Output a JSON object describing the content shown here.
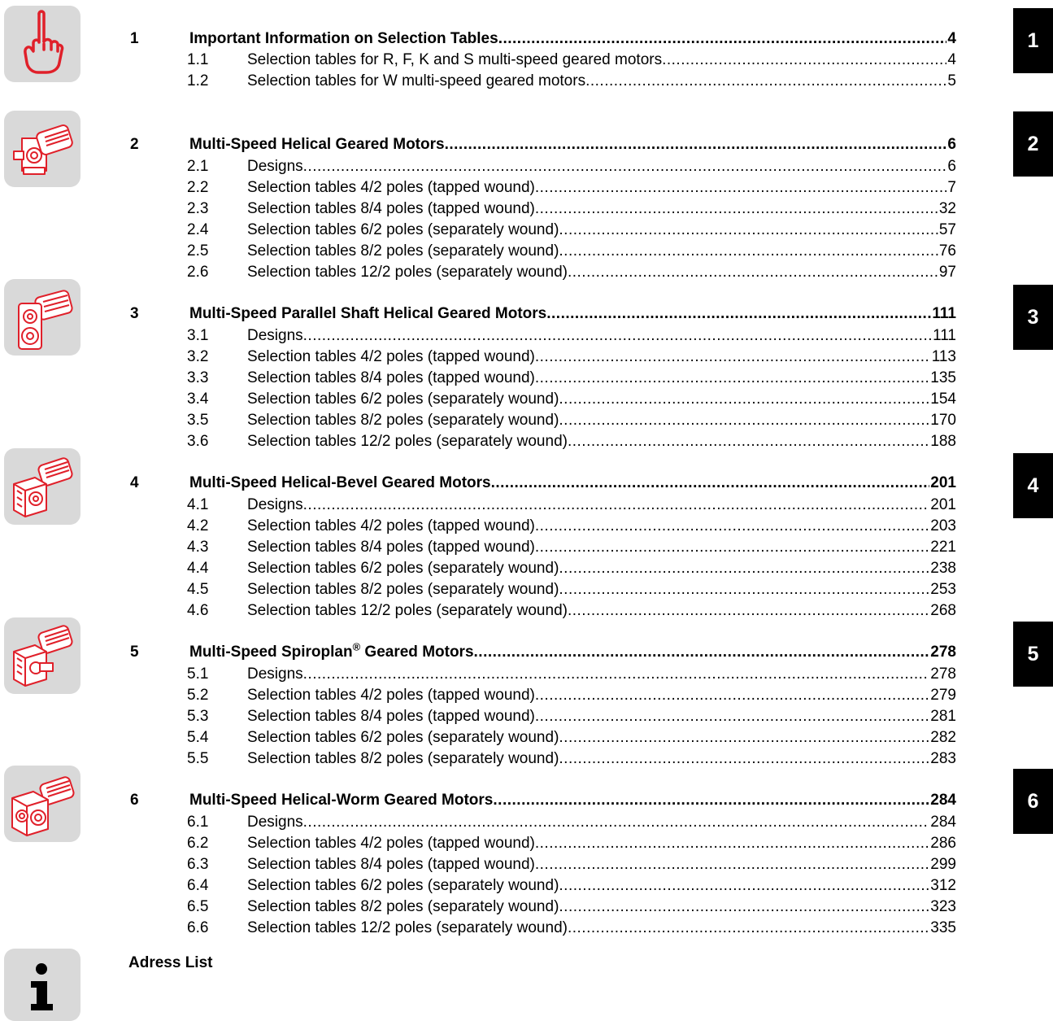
{
  "sections": [
    {
      "number": "1",
      "title": "Important Information on Selection Tables",
      "page": "4",
      "tab": "1",
      "icon": "pointing-finger-icon",
      "items": [
        {
          "number": "1.1",
          "title": "Selection tables for R, F, K and S multi-speed geared motors",
          "page": "4"
        },
        {
          "number": "1.2",
          "title": "Selection tables for W multi-speed geared motors",
          "page": "5"
        }
      ]
    },
    {
      "number": "2",
      "title": "Multi-Speed Helical Geared Motors",
      "page": "6",
      "tab": "2",
      "icon": "helical-geared-motor-icon",
      "items": [
        {
          "number": "2.1",
          "title": "Designs",
          "page": "6"
        },
        {
          "number": "2.2",
          "title": "Selection tables 4/2 poles (tapped wound)",
          "page": "7"
        },
        {
          "number": "2.3",
          "title": "Selection tables 8/4 poles (tapped wound)",
          "page": "32"
        },
        {
          "number": "2.4",
          "title": "Selection tables 6/2 poles (separately wound)",
          "page": "57"
        },
        {
          "number": "2.5",
          "title": "Selection tables 8/2 poles (separately wound)",
          "page": "76"
        },
        {
          "number": "2.6",
          "title": "Selection tables 12/2 poles (separately wound)",
          "page": "97"
        }
      ]
    },
    {
      "number": "3",
      "title": "Multi-Speed Parallel Shaft Helical Geared Motors",
      "page": "111",
      "tab": "3",
      "icon": "parallel-shaft-geared-motor-icon",
      "items": [
        {
          "number": "3.1",
          "title": "Designs",
          "page": "111"
        },
        {
          "number": "3.2",
          "title": "Selection tables 4/2 poles (tapped wound)",
          "page": "113"
        },
        {
          "number": "3.3",
          "title": "Selection tables 8/4 poles (tapped wound)",
          "page": "135"
        },
        {
          "number": "3.4",
          "title": "Selection tables 6/2 poles (separately wound)",
          "page": "154"
        },
        {
          "number": "3.5",
          "title": "Selection tables 8/2 poles (separately wound)",
          "page": "170"
        },
        {
          "number": "3.6",
          "title": "Selection tables 12/2 poles (separately wound)",
          "page": "188"
        }
      ]
    },
    {
      "number": "4",
      "title": "Multi-Speed Helical-Bevel Geared Motors",
      "page": "201",
      "tab": "4",
      "icon": "helical-bevel-geared-motor-icon",
      "items": [
        {
          "number": "4.1",
          "title": "Designs",
          "page": "201"
        },
        {
          "number": "4.2",
          "title": "Selection tables 4/2 poles (tapped wound)",
          "page": "203"
        },
        {
          "number": "4.3",
          "title": "Selection tables 8/4 poles (tapped wound)",
          "page": "221"
        },
        {
          "number": "4.4",
          "title": "Selection tables 6/2 poles (separately wound)",
          "page": "238"
        },
        {
          "number": "4.5",
          "title": "Selection tables 8/2 poles (separately wound)",
          "page": "253"
        },
        {
          "number": "4.6",
          "title": "Selection tables 12/2 poles (separately wound)",
          "page": "268"
        }
      ]
    },
    {
      "number": "5",
      "title": "Multi-Speed Spiroplan",
      "title_sup": "®",
      "title_after": " Geared Motors",
      "page": "278",
      "tab": "5",
      "icon": "spiroplan-geared-motor-icon",
      "items": [
        {
          "number": "5.1",
          "title": "Designs",
          "page": "278"
        },
        {
          "number": "5.2",
          "title": "Selection tables 4/2 poles (tapped wound)",
          "page": "279"
        },
        {
          "number": "5.3",
          "title": "Selection tables 8/4 poles (tapped wound)",
          "page": "281"
        },
        {
          "number": "5.4",
          "title": "Selection tables 6/2 poles (separately wound)",
          "page": "282"
        },
        {
          "number": "5.5",
          "title": "Selection tables 8/2 poles (separately wound)",
          "page": "283"
        }
      ]
    },
    {
      "number": "6",
      "title": "Multi-Speed Helical-Worm Geared Motors",
      "page": "284",
      "tab": "6",
      "icon": "helical-worm-geared-motor-icon",
      "items": [
        {
          "number": "6.1",
          "title": "Designs",
          "page": "284"
        },
        {
          "number": "6.2",
          "title": "Selection tables 4/2 poles (tapped wound)",
          "page": "286"
        },
        {
          "number": "6.3",
          "title": "Selection tables 8/4 poles (tapped wound)",
          "page": "299"
        },
        {
          "number": "6.4",
          "title": "Selection tables 6/2 poles (separately wound)",
          "page": "312"
        },
        {
          "number": "6.5",
          "title": "Selection tables 8/2 poles (separately wound)",
          "page": "323"
        },
        {
          "number": "6.6",
          "title": "Selection tables 12/2 poles (separately wound)",
          "page": "335"
        }
      ]
    }
  ],
  "address": {
    "title": "Adress List",
    "icon": "info-icon"
  },
  "colors": {
    "icon_red": "#e0202a",
    "icon_bg": "#d9d9d9",
    "tab_bg": "#000000",
    "tab_text": "#ffffff"
  }
}
